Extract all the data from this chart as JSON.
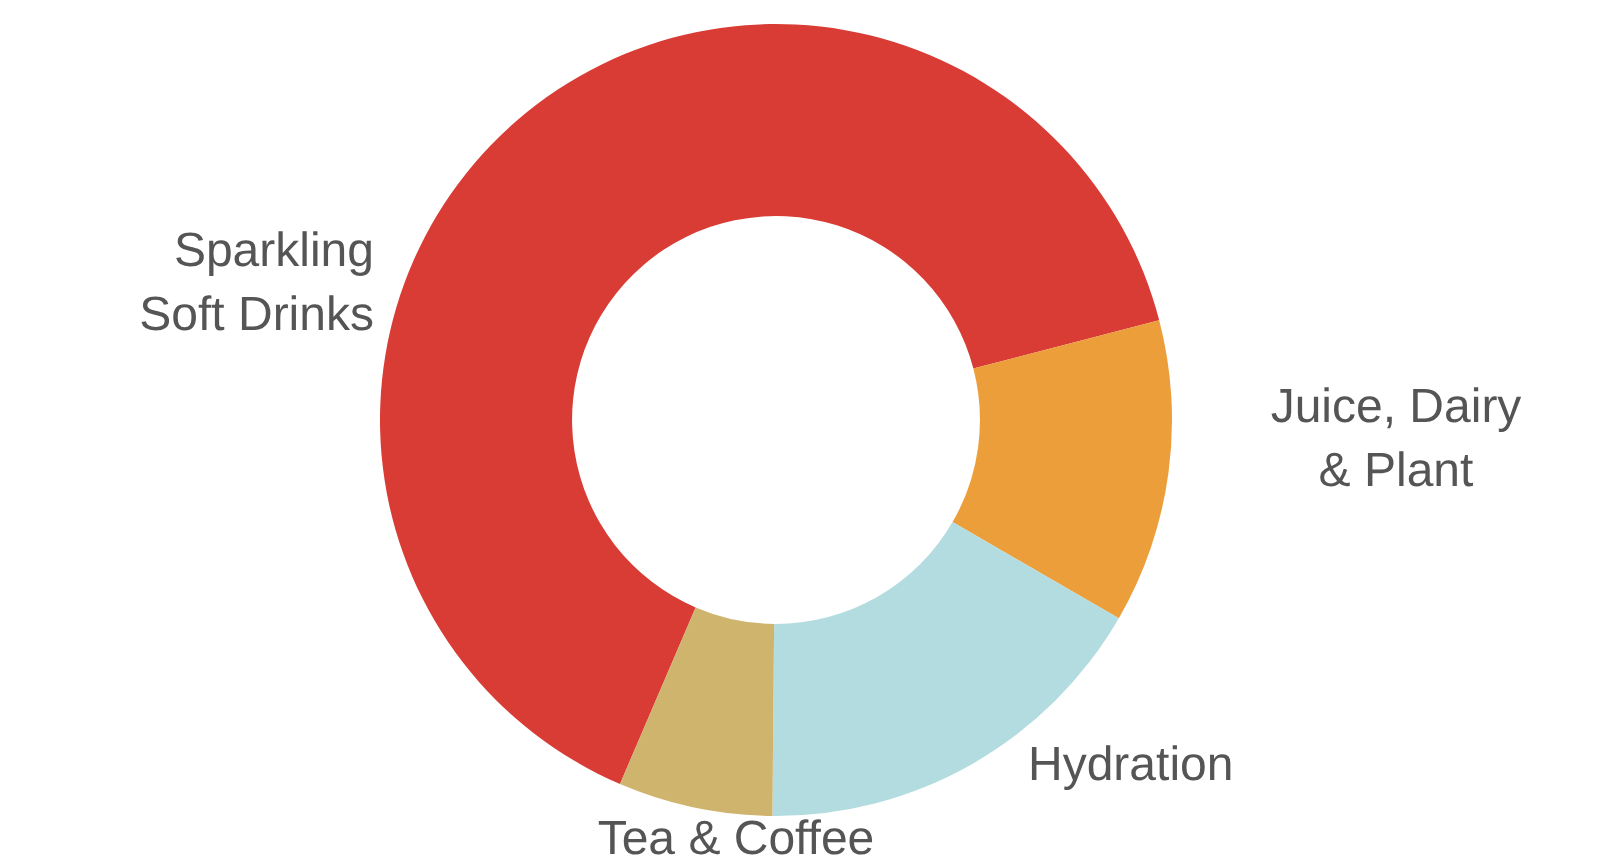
{
  "chart_data": {
    "type": "donut",
    "categories": [
      "Sparkling Soft Drinks",
      "Juice, Dairy & Plant",
      "Hydration",
      "Tea & Coffee"
    ],
    "values": [
      64.5,
      12.4,
      16.8,
      6.3
    ],
    "colors": [
      "#d93c35",
      "#ec9e3a",
      "#b2dce0",
      "#cfb46e"
    ]
  }
}
